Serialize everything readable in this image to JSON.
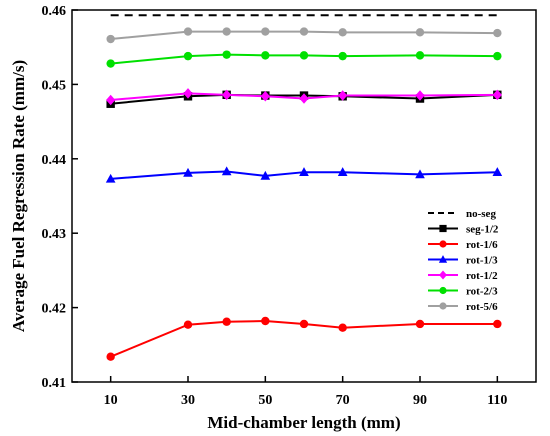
{
  "chart_data": {
    "type": "line",
    "xlabel": "Mid-chamber length (mm)",
    "ylabel": "Average Fuel Regression Rate (mm/s)",
    "xlim": [
      0,
      120
    ],
    "ylim": [
      0.41,
      0.46
    ],
    "xticks": [
      10,
      30,
      50,
      70,
      90,
      110
    ],
    "yticks": [
      0.41,
      0.42,
      0.43,
      0.44,
      0.45,
      0.46
    ],
    "ytick_labels": [
      "0.41",
      "0.42",
      "0.43",
      "0.44",
      "0.45",
      "0.46"
    ],
    "grid": false,
    "legend_position": "lower-right",
    "series": [
      {
        "name": "no-seg",
        "color": "#000000",
        "marker": "none",
        "dash": true,
        "x": [
          10,
          110
        ],
        "y": [
          0.4593,
          0.4593
        ]
      },
      {
        "name": "seg-1/2",
        "color": "#000000",
        "marker": "square",
        "x": [
          10,
          30,
          40,
          50,
          60,
          70,
          90,
          110
        ],
        "y": [
          0.4474,
          0.4484,
          0.4486,
          0.4485,
          0.4485,
          0.4484,
          0.4481,
          0.4486
        ]
      },
      {
        "name": "rot-1/6",
        "color": "#ff0000",
        "marker": "circle",
        "x": [
          10,
          30,
          40,
          50,
          60,
          70,
          90,
          110
        ],
        "y": [
          0.4134,
          0.4177,
          0.4181,
          0.4182,
          0.4178,
          0.4173,
          0.4178,
          0.4178
        ]
      },
      {
        "name": "rot-1/3",
        "color": "#0000ff",
        "marker": "triangle",
        "x": [
          10,
          30,
          40,
          50,
          60,
          70,
          90,
          110
        ],
        "y": [
          0.4373,
          0.4381,
          0.4383,
          0.4377,
          0.4382,
          0.4382,
          0.4379,
          0.4382
        ]
      },
      {
        "name": "rot-1/2",
        "color": "#ff00ff",
        "marker": "diamond",
        "x": [
          10,
          30,
          40,
          50,
          60,
          70,
          90,
          110
        ],
        "y": [
          0.4479,
          0.4488,
          0.4486,
          0.4484,
          0.4481,
          0.4485,
          0.4485,
          0.4486
        ]
      },
      {
        "name": "rot-2/3",
        "color": "#00e000",
        "marker": "circle",
        "x": [
          10,
          30,
          40,
          50,
          60,
          70,
          90,
          110
        ],
        "y": [
          0.4528,
          0.4538,
          0.454,
          0.4539,
          0.4539,
          0.4538,
          0.4539,
          0.4538
        ]
      },
      {
        "name": "rot-5/6",
        "color": "#a0a0a0",
        "marker": "circle",
        "x": [
          10,
          30,
          40,
          50,
          60,
          70,
          90,
          110
        ],
        "y": [
          0.4561,
          0.4571,
          0.4571,
          0.4571,
          0.4571,
          0.457,
          0.457,
          0.4569
        ]
      }
    ]
  }
}
